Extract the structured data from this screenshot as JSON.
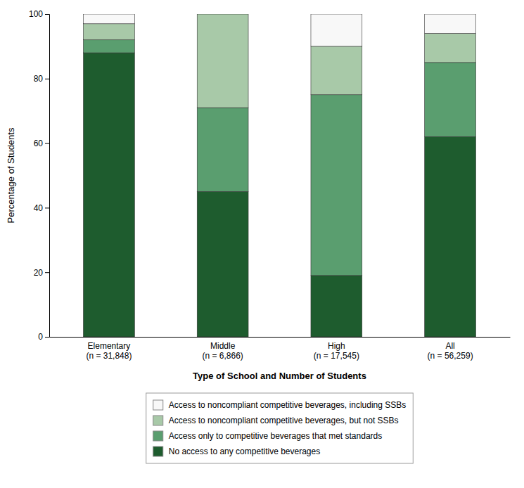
{
  "chart_data": {
    "type": "bar",
    "stacked": true,
    "categories": [
      "Elementary\n(n = 31,848)",
      "Middle\n(n = 6,866)",
      "High\n(n = 17,545)",
      "All\n(n = 56,259)"
    ],
    "series": [
      {
        "name": "No access to any competitive beverages",
        "color": "#1e5c2e",
        "values": [
          88,
          45,
          19,
          62
        ]
      },
      {
        "name": "Access only to competitive beverages that met standards",
        "color": "#5a9e6f",
        "values": [
          4,
          26,
          56,
          23
        ]
      },
      {
        "name": "Access to noncompliant competitive beverages, but not SSBs",
        "color": "#a8c9a8",
        "values": [
          5,
          29,
          15,
          9
        ]
      },
      {
        "name": "Access to noncompliant competitive beverages, including SSBs",
        "color": "#f8f8f8",
        "values": [
          3,
          0,
          10,
          6
        ]
      }
    ],
    "ylabel": "Percentage of Students",
    "xlabel": "Type of School and Number of Students",
    "ylim": [
      0,
      100
    ],
    "yticks": [
      0,
      20,
      40,
      60,
      80,
      100
    ],
    "grid": false,
    "legend": "bottom"
  }
}
